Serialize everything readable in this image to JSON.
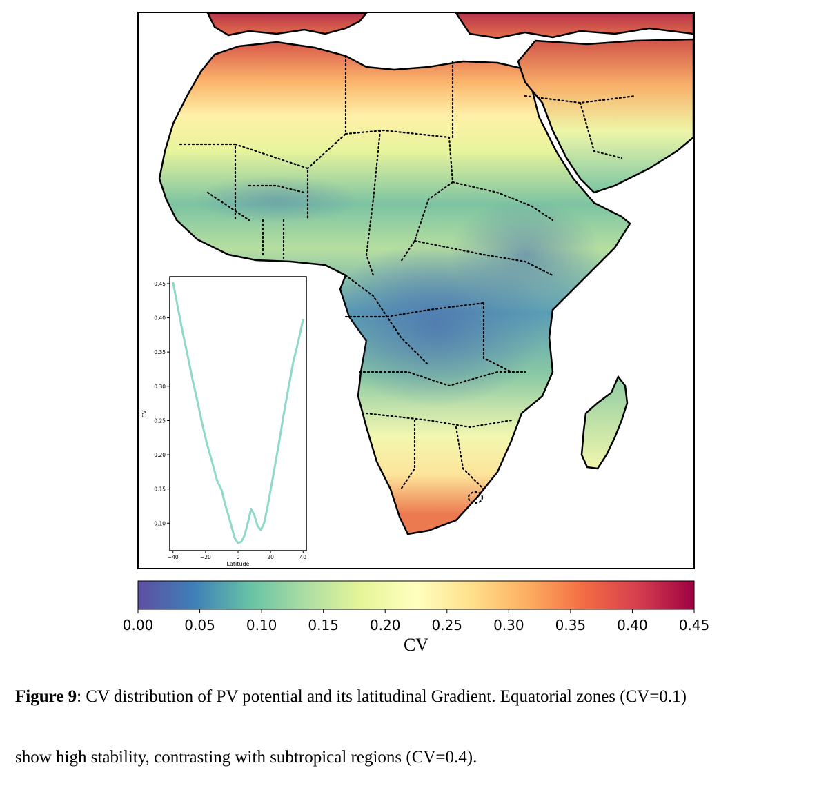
{
  "map": {
    "colormap": [
      "#5e4fa2",
      "#3f7fb8",
      "#66c2a5",
      "#abdda4",
      "#e6f598",
      "#ffffbf",
      "#fee08b",
      "#fdae61",
      "#f46d43",
      "#d53e4f",
      "#9e0142"
    ],
    "border_color": "#000000",
    "icon": "africa-cv-heatmap"
  },
  "chart_data": [
    {
      "type": "heatmap",
      "title": "",
      "colorbar": {
        "label": "CV",
        "range": [
          0.0,
          0.45
        ],
        "ticks": [
          0.0,
          0.05,
          0.1,
          0.15,
          0.2,
          0.25,
          0.3,
          0.35,
          0.4,
          0.45
        ],
        "tick_labels": [
          "0.00",
          "0.05",
          "0.10",
          "0.15",
          "0.20",
          "0.25",
          "0.30",
          "0.35",
          "0.40",
          "0.45"
        ],
        "orientation": "horizontal",
        "placement": "bottom"
      }
    },
    {
      "type": "line",
      "title": "",
      "xlabel": "Latitude",
      "ylabel": "CV",
      "xlim": [
        -42,
        42
      ],
      "ylim": [
        0.06,
        0.46
      ],
      "xticks": [
        -40,
        -20,
        0,
        20,
        40
      ],
      "xtick_labels": [
        "−40",
        "−20",
        "0",
        "20",
        "40"
      ],
      "yticks": [
        0.1,
        0.15,
        0.2,
        0.25,
        0.3,
        0.35,
        0.4,
        0.45
      ],
      "ytick_labels": [
        "0.10",
        "0.15",
        "0.20",
        "0.25",
        "0.30",
        "0.35",
        "0.40",
        "0.45"
      ],
      "line_color": "#8fd9c9",
      "series": [
        {
          "x": [
            -40,
            -37,
            -34,
            -31,
            -28,
            -25,
            -22,
            -19,
            -16,
            -13,
            -10,
            -8,
            -6,
            -4,
            -2,
            0,
            2,
            4,
            6,
            8,
            10,
            12,
            14,
            16,
            18,
            20,
            22,
            25,
            28,
            31,
            34,
            37,
            40
          ],
          "y": [
            0.452,
            0.415,
            0.378,
            0.345,
            0.31,
            0.278,
            0.245,
            0.215,
            0.19,
            0.163,
            0.148,
            0.128,
            0.112,
            0.095,
            0.078,
            0.071,
            0.073,
            0.082,
            0.1,
            0.121,
            0.112,
            0.096,
            0.09,
            0.1,
            0.122,
            0.148,
            0.175,
            0.215,
            0.258,
            0.298,
            0.336,
            0.365,
            0.398
          ]
        }
      ]
    }
  ],
  "caption": {
    "label": "Figure 9",
    "line1": ": CV distribution of PV potential and its latitudinal Gradient. Equatorial zones (CV=0.1)",
    "line2": "show high stability, contrasting with subtropical regions (CV=0.4)."
  }
}
